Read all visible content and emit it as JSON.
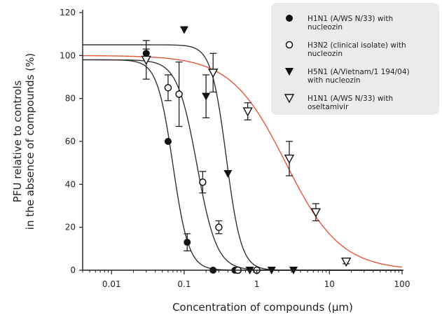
{
  "chart_data": {
    "type": "scatter",
    "title": "",
    "xlabel": "Concentration of compounds (µm)",
    "ylabel": [
      "PFU relative to controls",
      "in the absence of compounds (%)"
    ],
    "xscale": "log",
    "xlim": [
      0.004,
      100
    ],
    "ylim": [
      0,
      120
    ],
    "x_ticks": [
      0.01,
      0.1,
      1,
      10,
      100
    ],
    "x_tick_labels": [
      "0.01",
      "0.1",
      "1",
      "10",
      "100"
    ],
    "y_ticks": [
      0,
      20,
      40,
      60,
      80,
      100,
      120
    ],
    "grid": false,
    "legend_position": "top-right",
    "legend_bg": "#ebebeb",
    "series": [
      {
        "name": [
          "H1N1 (A/WS N/33) with",
          "nucleozin"
        ],
        "marker": "filled-circle",
        "line_color": "#333333",
        "marker_color": "#111111",
        "ic50": 0.07,
        "top": 98,
        "hill": 4.0,
        "points": [
          {
            "x": 0.03,
            "y": 101,
            "err": 2
          },
          {
            "x": 0.06,
            "y": 60,
            "err": 0
          },
          {
            "x": 0.11,
            "y": 13,
            "err": 4
          },
          {
            "x": 0.25,
            "y": 0,
            "err": 0
          },
          {
            "x": 0.5,
            "y": 0,
            "err": 0
          }
        ]
      },
      {
        "name": [
          "H3N2 (clinical isolate) with",
          "nucleozin"
        ],
        "marker": "open-circle",
        "line_color": "#333333",
        "marker_color": "#111111",
        "ic50": 0.15,
        "top": 98,
        "hill": 3.2,
        "points": [
          {
            "x": 0.06,
            "y": 85,
            "err": 6
          },
          {
            "x": 0.085,
            "y": 82,
            "err": 15
          },
          {
            "x": 0.18,
            "y": 41,
            "err": 5
          },
          {
            "x": 0.3,
            "y": 20,
            "err": 3
          },
          {
            "x": 0.55,
            "y": 0,
            "err": 0
          },
          {
            "x": 1.0,
            "y": 0,
            "err": 0
          }
        ]
      },
      {
        "name": [
          "H5N1 (A/Vietnam/1 194/04)",
          "with nucleozin"
        ],
        "marker": "filled-triangle-down",
        "line_color": "#333333",
        "marker_color": "#111111",
        "ic50": 0.38,
        "top": 105,
        "hill": 4.2,
        "points": [
          {
            "x": 0.1,
            "y": 112,
            "err": 0
          },
          {
            "x": 0.2,
            "y": 81,
            "err": 10
          },
          {
            "x": 0.4,
            "y": 45,
            "err": 0
          },
          {
            "x": 0.8,
            "y": 0,
            "err": 0
          },
          {
            "x": 1.6,
            "y": 0,
            "err": 0
          },
          {
            "x": 3.2,
            "y": 0,
            "err": 0
          }
        ]
      },
      {
        "name": [
          "H1N1 (A/WS N/33) with",
          "oseltamivir"
        ],
        "marker": "open-triangle-down",
        "line_color": "#e8553a",
        "marker_color": "#111111",
        "ic50": 2.5,
        "top": 100,
        "hill": 1.15,
        "points": [
          {
            "x": 0.03,
            "y": 98,
            "err": 9
          },
          {
            "x": 0.25,
            "y": 92,
            "err": 9
          },
          {
            "x": 0.75,
            "y": 74,
            "err": 4
          },
          {
            "x": 2.8,
            "y": 52,
            "err": 8
          },
          {
            "x": 6.5,
            "y": 27,
            "err": 4
          },
          {
            "x": 17,
            "y": 4,
            "err": 1
          }
        ]
      }
    ]
  }
}
